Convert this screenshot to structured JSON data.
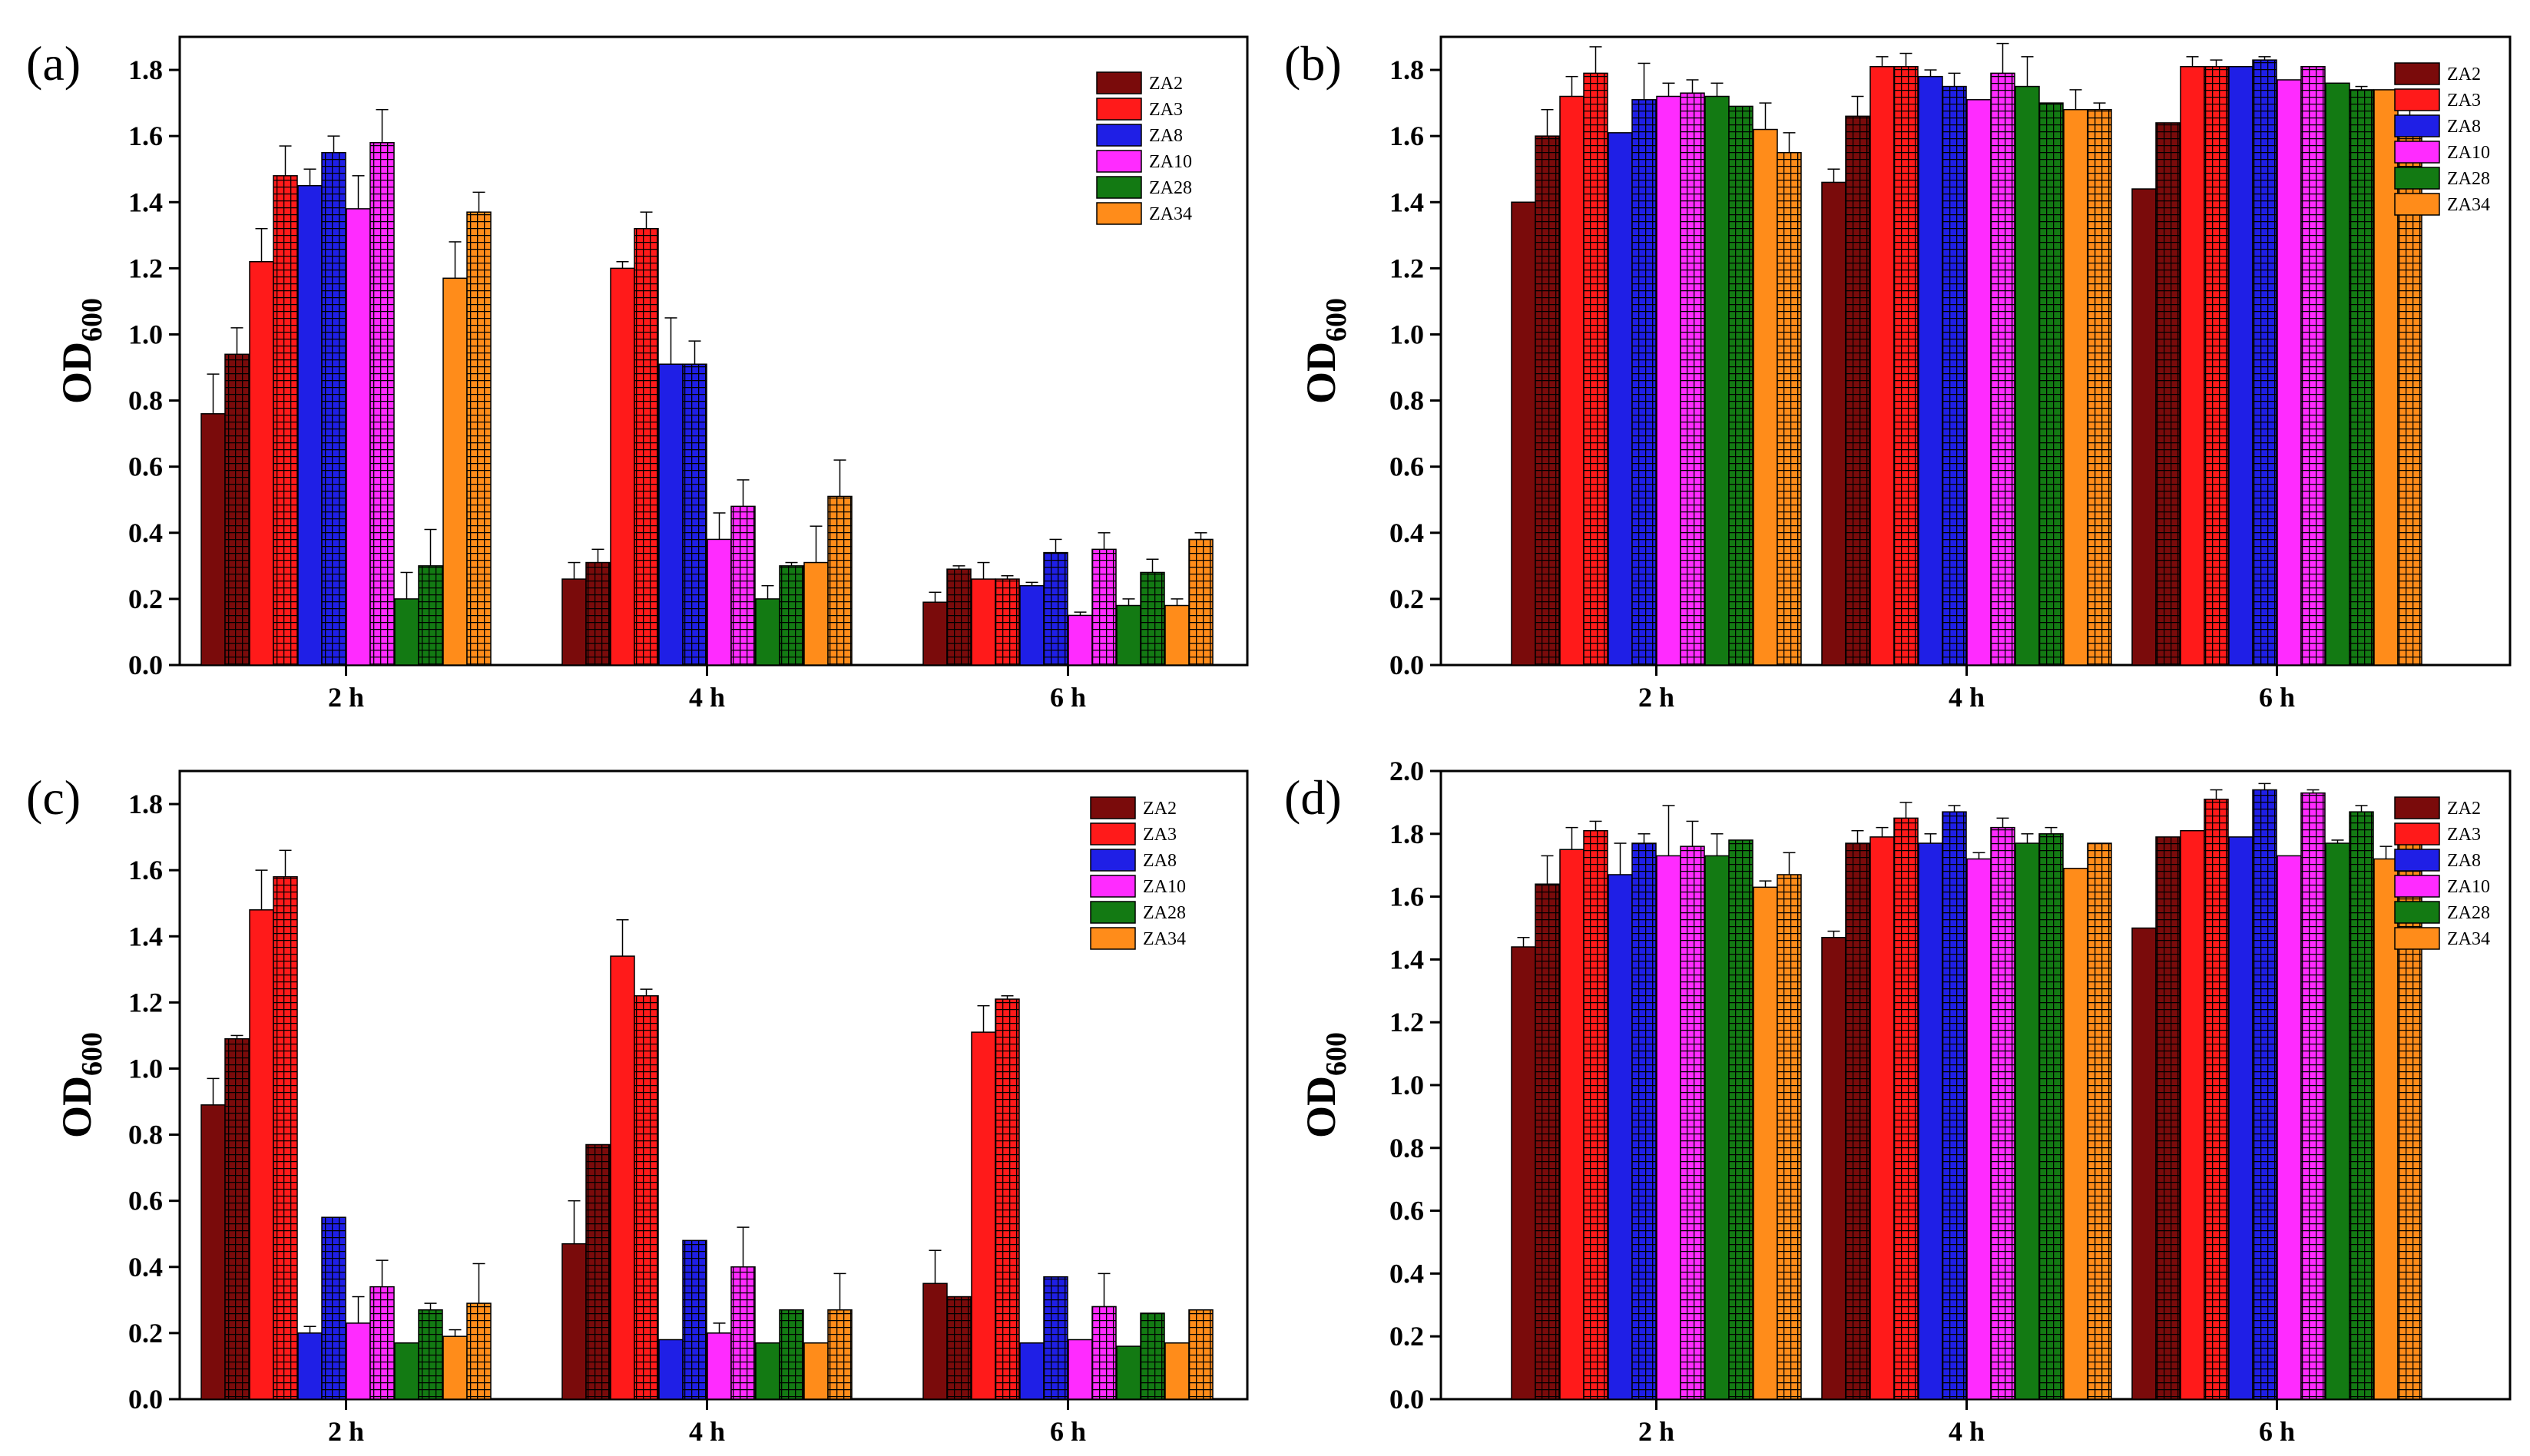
{
  "figure": {
    "legend_entries": [
      "ZA2",
      "ZA3",
      "ZA8",
      "ZA10",
      "ZA28",
      "ZA34"
    ],
    "colors": {
      "ZA2": "#7a0b0b",
      "ZA3": "#ff1a1a",
      "ZA8": "#1f1fe6",
      "ZA10": "#ff2bff",
      "ZA28": "#137a13",
      "ZA34": "#ff8c1a"
    }
  },
  "chart_data": [
    {
      "type": "bar",
      "panel_label": "(a)",
      "ylabel_main": "OD",
      "ylabel_sub": "600",
      "xlabel": "",
      "categories": [
        "2 h",
        "4 h",
        "6 h"
      ],
      "ylim": [
        0,
        1.9
      ],
      "yticks": [
        "0.0",
        "0.2",
        "0.4",
        "0.6",
        "0.8",
        "1.0",
        "1.2",
        "1.4",
        "1.6",
        "1.8"
      ],
      "legend_position": "top-right",
      "series": [
        {
          "name": "ZA2",
          "values": [
            [
              0.76,
              0.94
            ],
            [
              0.26,
              0.31
            ],
            [
              0.19,
              0.29
            ]
          ],
          "errors": [
            [
              0.12,
              0.08
            ],
            [
              0.05,
              0.04
            ],
            [
              0.03,
              0.01
            ]
          ]
        },
        {
          "name": "ZA3",
          "values": [
            [
              1.22,
              1.48
            ],
            [
              1.2,
              1.32
            ],
            [
              0.26,
              0.26
            ]
          ],
          "errors": [
            [
              0.1,
              0.09
            ],
            [
              0.02,
              0.05
            ],
            [
              0.05,
              0.01
            ]
          ]
        },
        {
          "name": "ZA8",
          "values": [
            [
              1.45,
              1.55
            ],
            [
              0.91,
              0.91
            ],
            [
              0.24,
              0.34
            ]
          ],
          "errors": [
            [
              0.05,
              0.05
            ],
            [
              0.14,
              0.07
            ],
            [
              0.01,
              0.04
            ]
          ]
        },
        {
          "name": "ZA10",
          "values": [
            [
              1.38,
              1.58
            ],
            [
              0.38,
              0.48
            ],
            [
              0.15,
              0.35
            ]
          ],
          "errors": [
            [
              0.1,
              0.1
            ],
            [
              0.08,
              0.08
            ],
            [
              0.01,
              0.05
            ]
          ]
        },
        {
          "name": "ZA28",
          "values": [
            [
              0.2,
              0.3
            ],
            [
              0.2,
              0.3
            ],
            [
              0.18,
              0.28
            ]
          ],
          "errors": [
            [
              0.08,
              0.11
            ],
            [
              0.04,
              0.01
            ],
            [
              0.02,
              0.04
            ]
          ]
        },
        {
          "name": "ZA34",
          "values": [
            [
              1.17,
              1.37
            ],
            [
              0.31,
              0.51
            ],
            [
              0.18,
              0.38
            ]
          ],
          "errors": [
            [
              0.11,
              0.06
            ],
            [
              0.11,
              0.11
            ],
            [
              0.02,
              0.02
            ]
          ]
        }
      ]
    },
    {
      "type": "bar",
      "panel_label": "(b)",
      "ylabel_main": "OD",
      "ylabel_sub": "600",
      "xlabel": "",
      "categories": [
        "2 h",
        "4 h",
        "6 h"
      ],
      "ylim": [
        0,
        1.9
      ],
      "yticks": [
        "0.0",
        "0.2",
        "0.4",
        "0.6",
        "0.8",
        "1.0",
        "1.2",
        "1.4",
        "1.6",
        "1.8"
      ],
      "legend_position": "top-right",
      "series": [
        {
          "name": "ZA2",
          "values": [
            [
              1.4,
              1.6
            ],
            [
              1.46,
              1.66
            ],
            [
              1.44,
              1.64
            ]
          ],
          "errors": [
            [
              0.0,
              0.08
            ],
            [
              0.04,
              0.06
            ],
            [
              0.0,
              0.0
            ]
          ]
        },
        {
          "name": "ZA3",
          "values": [
            [
              1.72,
              1.79
            ],
            [
              1.81,
              1.81
            ],
            [
              1.81,
              1.81
            ]
          ],
          "errors": [
            [
              0.06,
              0.08
            ],
            [
              0.03,
              0.04
            ],
            [
              0.03,
              0.02
            ]
          ]
        },
        {
          "name": "ZA8",
          "values": [
            [
              1.61,
              1.71
            ],
            [
              1.78,
              1.75
            ],
            [
              1.81,
              1.83
            ]
          ],
          "errors": [
            [
              0.0,
              0.11
            ],
            [
              0.02,
              0.04
            ],
            [
              0.0,
              0.01
            ]
          ]
        },
        {
          "name": "ZA10",
          "values": [
            [
              1.72,
              1.73
            ],
            [
              1.71,
              1.79
            ],
            [
              1.77,
              1.81
            ]
          ],
          "errors": [
            [
              0.04,
              0.04
            ],
            [
              0.0,
              0.09
            ],
            [
              0.0,
              0.0
            ]
          ]
        },
        {
          "name": "ZA28",
          "values": [
            [
              1.72,
              1.69
            ],
            [
              1.75,
              1.7
            ],
            [
              1.76,
              1.74
            ]
          ],
          "errors": [
            [
              0.04,
              0.0
            ],
            [
              0.09,
              0.0
            ],
            [
              0.0,
              0.01
            ]
          ]
        },
        {
          "name": "ZA34",
          "values": [
            [
              1.62,
              1.55
            ],
            [
              1.68,
              1.68
            ],
            [
              1.74,
              1.65
            ]
          ],
          "errors": [
            [
              0.08,
              0.06
            ],
            [
              0.06,
              0.02
            ],
            [
              0.0,
              0.03
            ]
          ]
        }
      ]
    },
    {
      "type": "bar",
      "panel_label": "(c)",
      "ylabel_main": "OD",
      "ylabel_sub": "600",
      "xlabel": "",
      "categories": [
        "2 h",
        "4 h",
        "6 h"
      ],
      "ylim": [
        0,
        1.9
      ],
      "yticks": [
        "0.0",
        "0.2",
        "0.4",
        "0.6",
        "0.8",
        "1.0",
        "1.2",
        "1.4",
        "1.6",
        "1.8"
      ],
      "legend_position": "top-right",
      "series": [
        {
          "name": "ZA2",
          "values": [
            [
              0.89,
              1.09
            ],
            [
              0.47,
              0.77
            ],
            [
              0.35,
              0.31
            ]
          ],
          "errors": [
            [
              0.08,
              0.01
            ],
            [
              0.13,
              0.0
            ],
            [
              0.1,
              0.0
            ]
          ]
        },
        {
          "name": "ZA3",
          "values": [
            [
              1.48,
              1.58
            ],
            [
              1.34,
              1.22
            ],
            [
              1.11,
              1.21
            ]
          ],
          "errors": [
            [
              0.12,
              0.08
            ],
            [
              0.11,
              0.02
            ],
            [
              0.08,
              0.01
            ]
          ]
        },
        {
          "name": "ZA8",
          "values": [
            [
              0.2,
              0.55
            ],
            [
              0.18,
              0.48
            ],
            [
              0.17,
              0.37
            ]
          ],
          "errors": [
            [
              0.02,
              0.0
            ],
            [
              0.0,
              0.0
            ],
            [
              0.0,
              0.0
            ]
          ]
        },
        {
          "name": "ZA10",
          "values": [
            [
              0.23,
              0.34
            ],
            [
              0.2,
              0.4
            ],
            [
              0.18,
              0.28
            ]
          ],
          "errors": [
            [
              0.08,
              0.08
            ],
            [
              0.03,
              0.12
            ],
            [
              0.0,
              0.1
            ]
          ]
        },
        {
          "name": "ZA28",
          "values": [
            [
              0.17,
              0.27
            ],
            [
              0.17,
              0.27
            ],
            [
              0.16,
              0.26
            ]
          ],
          "errors": [
            [
              0.0,
              0.02
            ],
            [
              0.0,
              0.0
            ],
            [
              0.0,
              0.0
            ]
          ]
        },
        {
          "name": "ZA34",
          "values": [
            [
              0.19,
              0.29
            ],
            [
              0.17,
              0.27
            ],
            [
              0.17,
              0.27
            ]
          ],
          "errors": [
            [
              0.02,
              0.12
            ],
            [
              0.0,
              0.11
            ],
            [
              0.0,
              0.0
            ]
          ]
        }
      ]
    },
    {
      "type": "bar",
      "panel_label": "(d)",
      "ylabel_main": "OD",
      "ylabel_sub": "600",
      "xlabel": "",
      "categories": [
        "2 h",
        "4 h",
        "6 h"
      ],
      "ylim": [
        0,
        2.0
      ],
      "yticks": [
        "0.0",
        "0.2",
        "0.4",
        "0.6",
        "0.8",
        "1.0",
        "1.2",
        "1.4",
        "1.6",
        "1.8",
        "2.0"
      ],
      "legend_position": "top-right",
      "series": [
        {
          "name": "ZA2",
          "values": [
            [
              1.44,
              1.64
            ],
            [
              1.47,
              1.77
            ],
            [
              1.5,
              1.79
            ]
          ],
          "errors": [
            [
              0.03,
              0.09
            ],
            [
              0.02,
              0.04
            ],
            [
              0.0,
              0.0
            ]
          ]
        },
        {
          "name": "ZA3",
          "values": [
            [
              1.75,
              1.81
            ],
            [
              1.79,
              1.85
            ],
            [
              1.81,
              1.91
            ]
          ],
          "errors": [
            [
              0.07,
              0.03
            ],
            [
              0.03,
              0.05
            ],
            [
              0.0,
              0.03
            ]
          ]
        },
        {
          "name": "ZA8",
          "values": [
            [
              1.67,
              1.77
            ],
            [
              1.77,
              1.87
            ],
            [
              1.79,
              1.94
            ]
          ],
          "errors": [
            [
              0.1,
              0.03
            ],
            [
              0.03,
              0.02
            ],
            [
              0.0,
              0.02
            ]
          ]
        },
        {
          "name": "ZA10",
          "values": [
            [
              1.73,
              1.76
            ],
            [
              1.72,
              1.82
            ],
            [
              1.73,
              1.93
            ]
          ],
          "errors": [
            [
              0.16,
              0.08
            ],
            [
              0.02,
              0.03
            ],
            [
              0.0,
              0.01
            ]
          ]
        },
        {
          "name": "ZA28",
          "values": [
            [
              1.73,
              1.78
            ],
            [
              1.77,
              1.8
            ],
            [
              1.77,
              1.87
            ]
          ],
          "errors": [
            [
              0.07,
              0.0
            ],
            [
              0.03,
              0.02
            ],
            [
              0.01,
              0.02
            ]
          ]
        },
        {
          "name": "ZA34",
          "values": [
            [
              1.63,
              1.67
            ],
            [
              1.69,
              1.77
            ],
            [
              1.72,
              1.8
            ]
          ],
          "errors": [
            [
              0.02,
              0.07
            ],
            [
              0.0,
              0.0
            ],
            [
              0.04,
              0.0
            ]
          ]
        }
      ]
    }
  ]
}
